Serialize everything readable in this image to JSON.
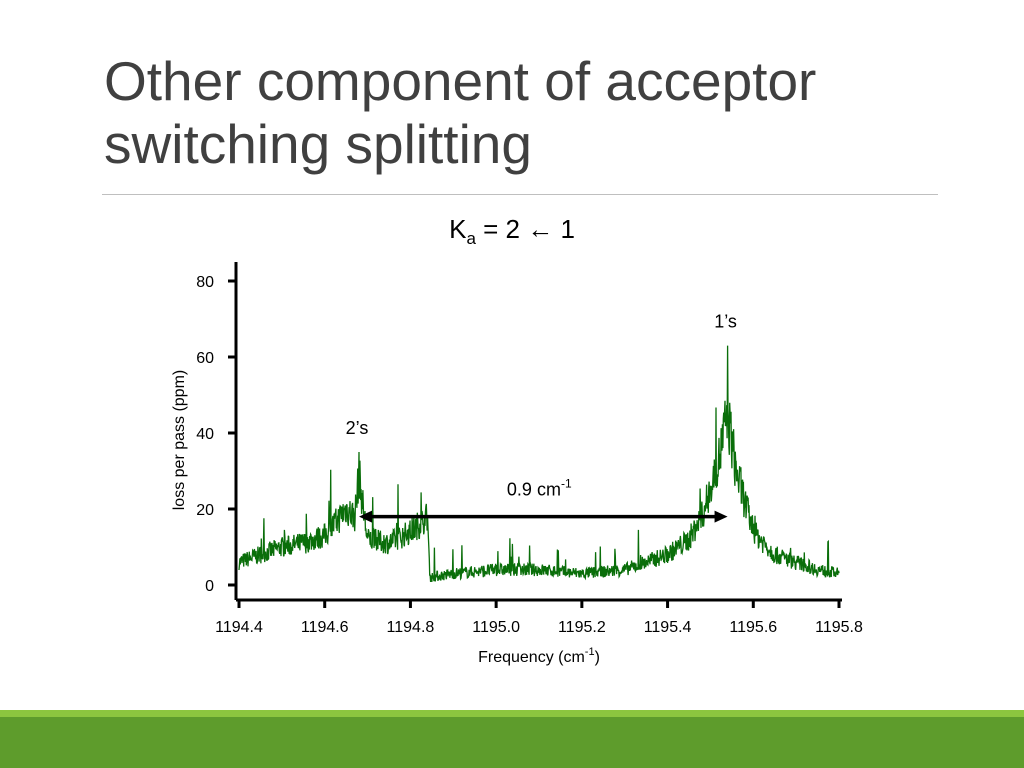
{
  "slide": {
    "title_line1": "Other component of acceptor",
    "title_line2": "switching splitting",
    "subtitle_prefix": "K",
    "subtitle_sub": "a",
    "subtitle_rest": " = 2 ← 1"
  },
  "chart_data": {
    "type": "line",
    "title": "",
    "xlabel": "Frequency (cm",
    "xlabel_sup": "-1",
    "xlabel_suffix": ")",
    "ylabel": "loss per pass (ppm)",
    "xlim": [
      1194.4,
      1195.8
    ],
    "ylim": [
      0,
      80
    ],
    "x_ticks": [
      "1194.4",
      "1194.6",
      "1194.8",
      "1195.0",
      "1195.2",
      "1195.4",
      "1195.6",
      "1195.8"
    ],
    "y_ticks": [
      "0",
      "20",
      "40",
      "60",
      "80"
    ],
    "grid": false,
    "line_color": "#0a6e0a",
    "series": [
      {
        "x": [
          1194.4,
          1194.45,
          1194.5,
          1194.55,
          1194.6,
          1194.63,
          1194.65,
          1194.67,
          1194.68,
          1194.69,
          1194.7,
          1194.75,
          1194.8,
          1194.84,
          1194.845,
          1194.9,
          1195.0,
          1195.1,
          1195.2,
          1195.3,
          1195.35,
          1195.4,
          1195.45,
          1195.48,
          1195.5,
          1195.52,
          1195.54,
          1195.56,
          1195.6,
          1195.65,
          1195.7,
          1195.75,
          1195.8
        ],
        "y": [
          6,
          8,
          10,
          11,
          13,
          17,
          20,
          18,
          29,
          20,
          12,
          11,
          14,
          18,
          2,
          3,
          4,
          4,
          3,
          4,
          6,
          8,
          12,
          18,
          25,
          33,
          45,
          30,
          14,
          8,
          6,
          4,
          3
        ]
      }
    ],
    "peaks": [
      {
        "label": "2’s",
        "x": 1194.68,
        "y": 35
      },
      {
        "label": "1’s",
        "x": 1195.54,
        "y": 63
      }
    ],
    "annotation": {
      "text": "0.9 cm",
      "sup": "-1",
      "arrow": {
        "from": 1194.68,
        "to": 1195.54,
        "y": 18
      }
    }
  }
}
